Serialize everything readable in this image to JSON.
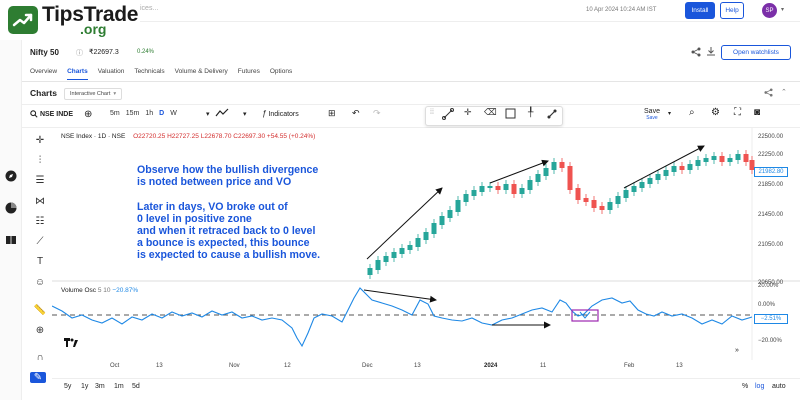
{
  "brand": {
    "name": "TipsTrade",
    "tld": ".org"
  },
  "topbar": {
    "search_ghost": "ices...",
    "timestamp": "10 Apr 2024 10:24 AM IST",
    "install_label": "Install",
    "help_label": "Help",
    "avatar_initials": "SP"
  },
  "stock": {
    "name": "Nifty 50",
    "price": "₹22697.3",
    "change": "0.24%"
  },
  "watchlists_label": "Open watchlists",
  "tabs": [
    {
      "label": "Overview",
      "active": false
    },
    {
      "label": "Charts",
      "active": true
    },
    {
      "label": "Valuation",
      "active": false
    },
    {
      "label": "Technicals",
      "active": false
    },
    {
      "label": "Volume & Delivery",
      "active": false
    },
    {
      "label": "Futures",
      "active": false
    },
    {
      "label": "Options",
      "active": false
    }
  ],
  "charts_section": {
    "title": "Charts",
    "chart_type": "Interactive Chart"
  },
  "toolbar": {
    "symbol": "NSE INDE",
    "intervals": [
      "5m",
      "15m",
      "1h",
      "D",
      "W"
    ],
    "active_interval": "D",
    "indicators_label": "Indicators",
    "save_label": "Save",
    "save_sub": "Save"
  },
  "chart": {
    "legend_title": "NSE Index · 1D · NSE",
    "open": "O22720.25",
    "high": "H22727.25",
    "low": "L22678.70",
    "close": "C22697.30",
    "change": "+54.55 (+0.24%)",
    "price_axis": [
      "22500.00",
      "22250.00",
      "21850.00",
      "21450.00",
      "21050.00",
      "20650.00"
    ],
    "last_price": "21982.80",
    "osc_name": "Volume Osc",
    "osc_params": "5 10",
    "osc_value": "−20.87%",
    "osc_axis": [
      "20.00%",
      "0.00%",
      "−20.00%"
    ],
    "osc_last": "−2.51%",
    "time_axis": [
      {
        "label": "Oct",
        "bold": false
      },
      {
        "label": "13",
        "bold": false
      },
      {
        "label": "Nov",
        "bold": false
      },
      {
        "label": "12",
        "bold": false
      },
      {
        "label": "Dec",
        "bold": false
      },
      {
        "label": "13",
        "bold": false
      },
      {
        "label": "2024",
        "bold": true
      },
      {
        "label": "11",
        "bold": false
      },
      {
        "label": "Feb",
        "bold": false
      },
      {
        "label": "13",
        "bold": false
      }
    ],
    "annotation_lines": [
      "Observe how the bullish divergence",
      "is noted between price and VO",
      "",
      "Later in days, VO broke out of",
      "0 level in positive zone",
      "and when it retraced back to 0 level",
      "a bounce is expected, this bounce",
      "is expected to cause a bullish move."
    ]
  },
  "bottom_bar": {
    "ranges": [
      "5y",
      "1y",
      "3m",
      "1m",
      "5d"
    ],
    "percent_label": "%",
    "log_label": "log",
    "auto_label": "auto"
  },
  "colors": {
    "accent": "#1a56db",
    "brand_green": "#2e7d32",
    "candle_up": "#26a69a",
    "candle_down": "#ef5350",
    "osc_line": "#1e88e5",
    "annotation": "#1a56db"
  }
}
